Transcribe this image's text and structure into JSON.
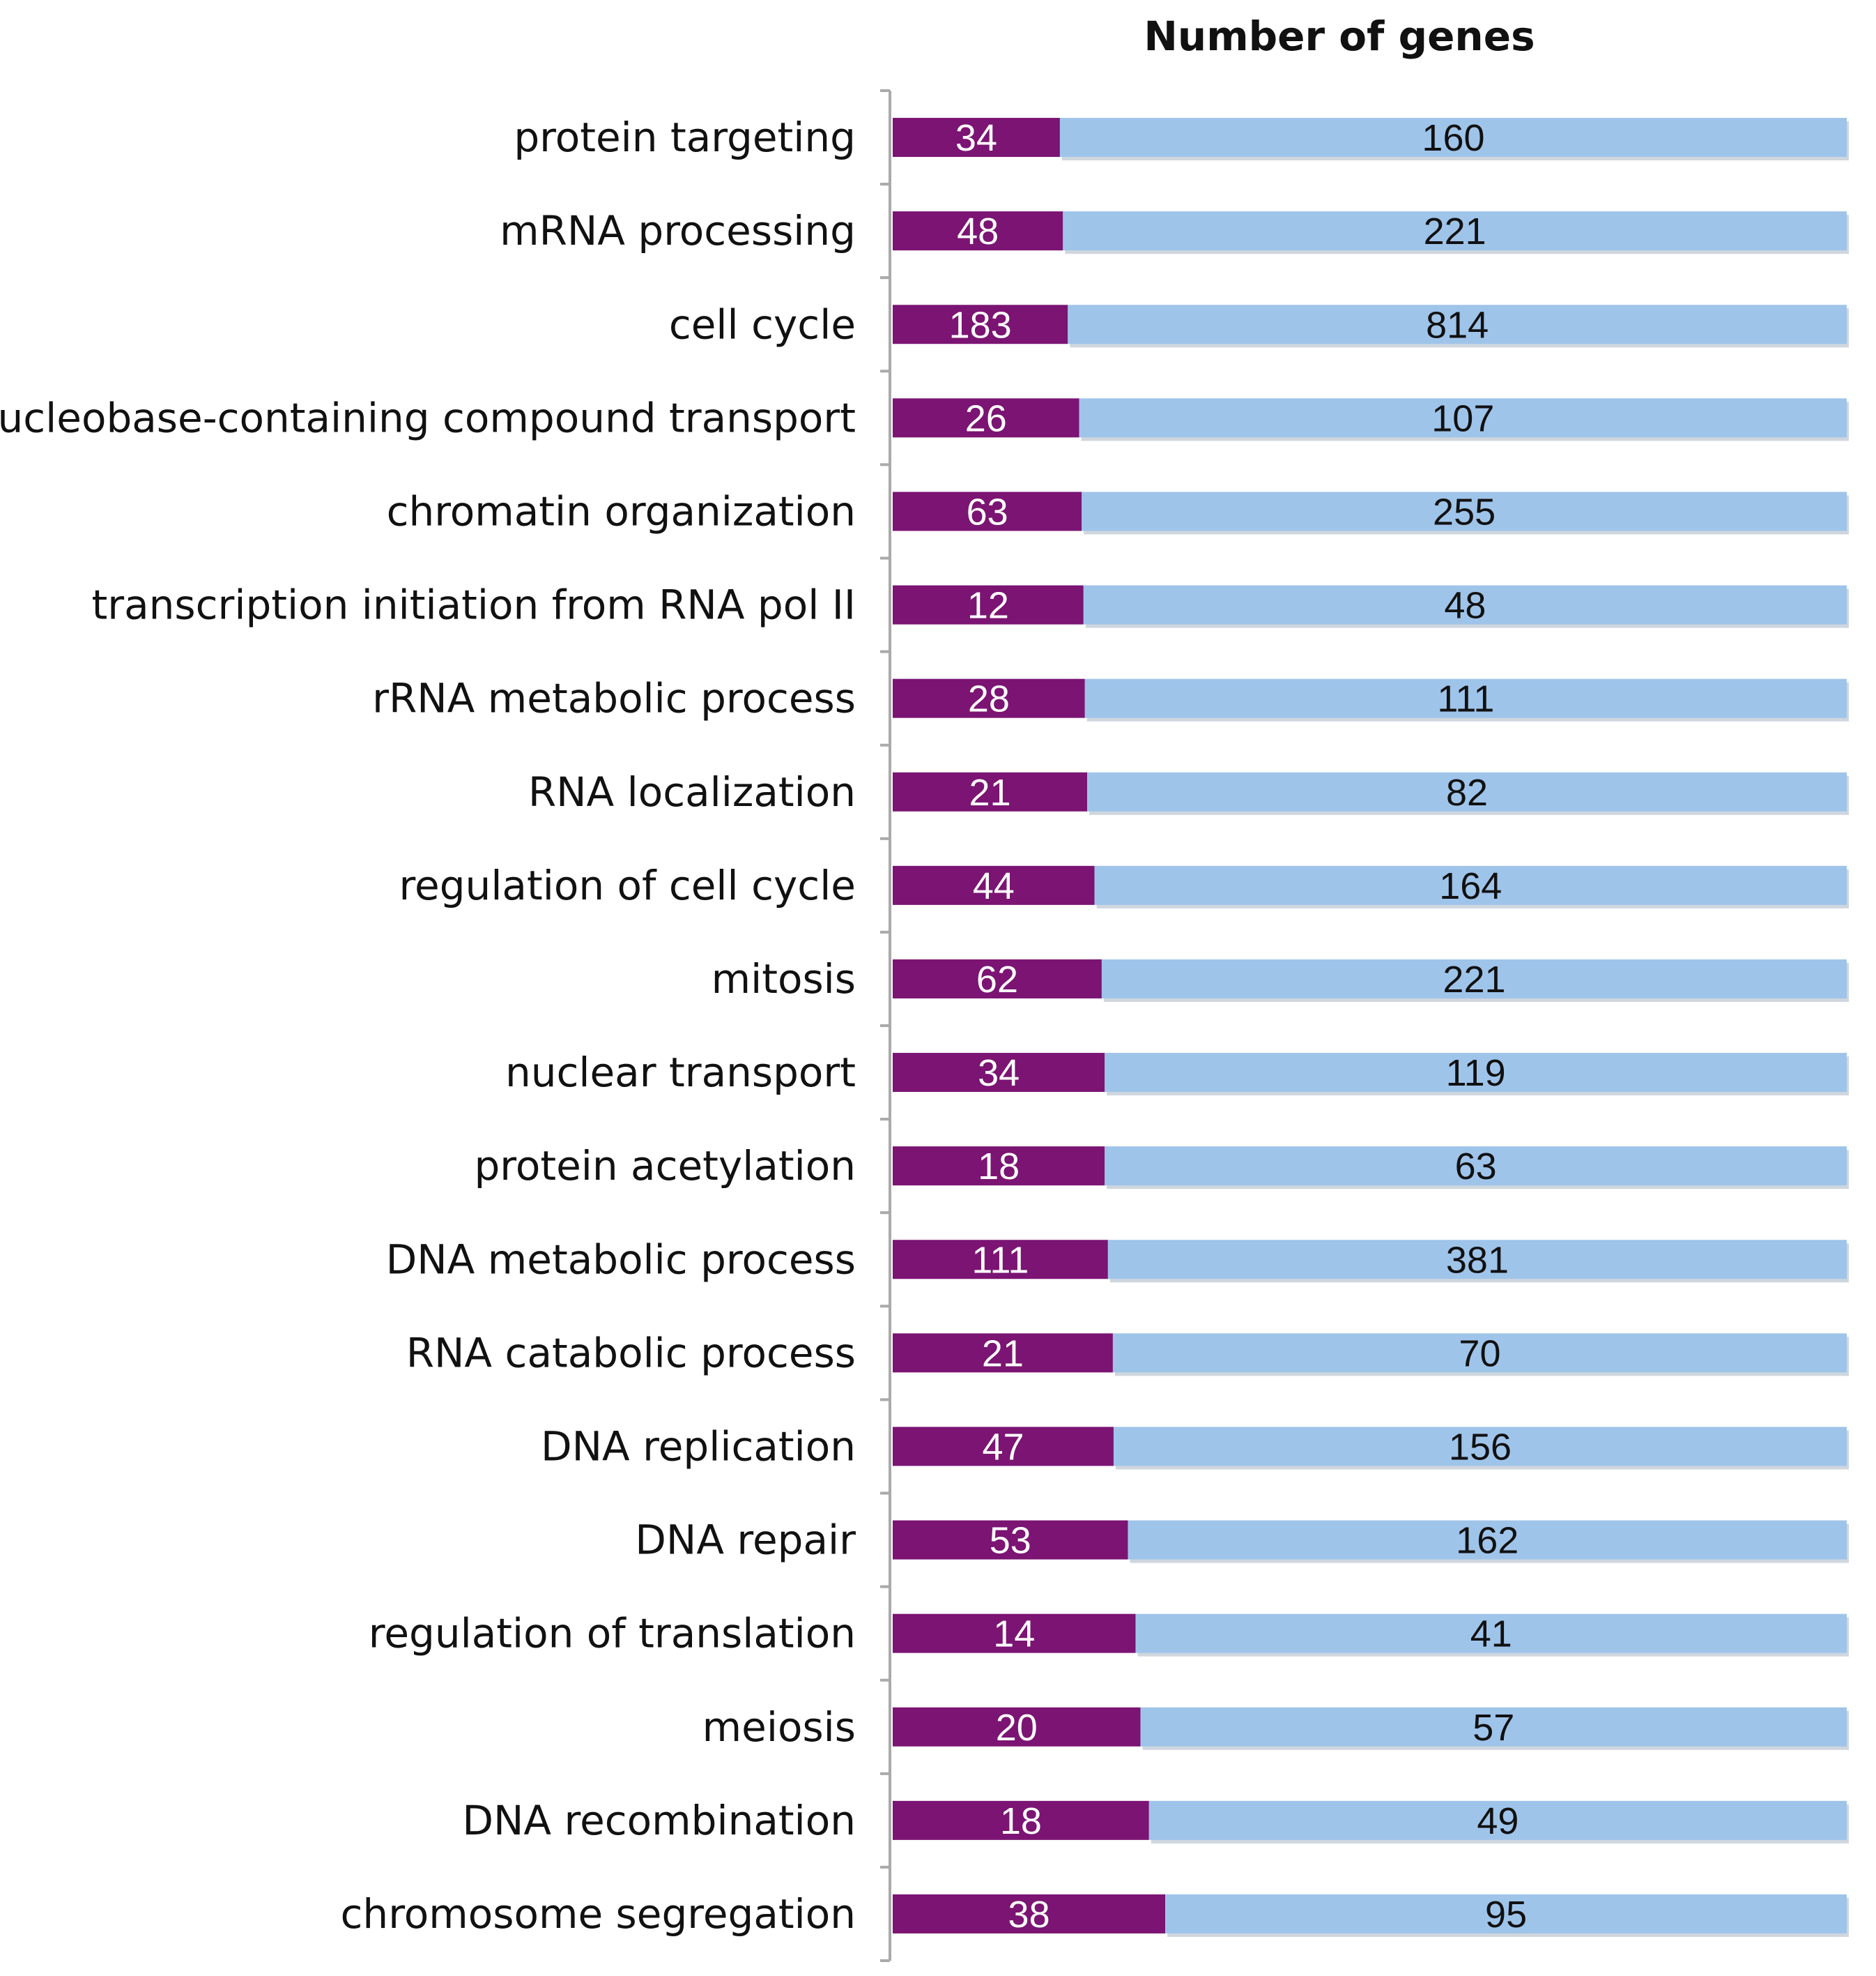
{
  "chart_data": {
    "type": "bar",
    "orientation": "horizontal",
    "stacked": true,
    "title": "Number of genes",
    "categories": [
      "protein targeting",
      "mRNA processing",
      "cell cycle",
      "nucleobase-containing compound transport",
      "chromatin organization",
      "transcription initiation from RNA pol II",
      "rRNA metabolic process",
      "RNA localization",
      "regulation of cell cycle",
      "mitosis",
      "nuclear transport",
      "protein acetylation",
      "DNA metabolic process",
      "RNA catabolic process",
      "DNA replication",
      "DNA repair",
      "regulation of translation",
      "meiosis",
      "DNA recombination",
      "chromosome segregation"
    ],
    "series": [
      {
        "color": "#7b1473",
        "label_color": "#ffffff",
        "values": [
          34,
          48,
          183,
          26,
          63,
          12,
          28,
          21,
          44,
          62,
          34,
          18,
          111,
          21,
          47,
          53,
          14,
          20,
          18,
          38
        ]
      },
      {
        "color": "#9fc4ea",
        "label_color": "#111111",
        "values": [
          160,
          221,
          814,
          107,
          255,
          48,
          111,
          82,
          164,
          221,
          119,
          63,
          381,
          70,
          156,
          162,
          41,
          57,
          49,
          95
        ]
      }
    ],
    "normalized_to_total": true,
    "grid": false,
    "legend": "none"
  }
}
